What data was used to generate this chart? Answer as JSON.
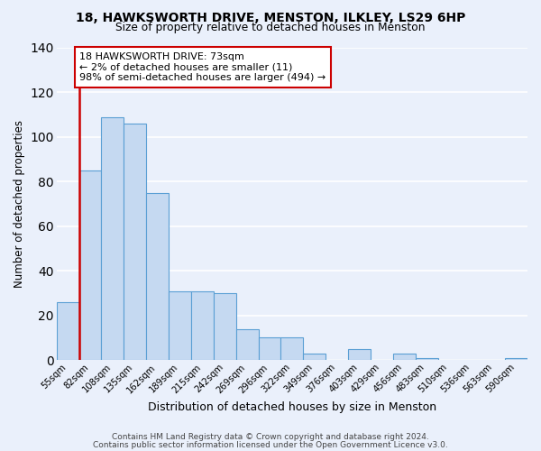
{
  "title1": "18, HAWKSWORTH DRIVE, MENSTON, ILKLEY, LS29 6HP",
  "title2": "Size of property relative to detached houses in Menston",
  "xlabel": "Distribution of detached houses by size in Menston",
  "ylabel": "Number of detached properties",
  "bar_labels": [
    "55sqm",
    "82sqm",
    "108sqm",
    "135sqm",
    "162sqm",
    "189sqm",
    "215sqm",
    "242sqm",
    "269sqm",
    "296sqm",
    "322sqm",
    "349sqm",
    "376sqm",
    "403sqm",
    "429sqm",
    "456sqm",
    "483sqm",
    "510sqm",
    "536sqm",
    "563sqm",
    "590sqm"
  ],
  "bar_values": [
    26,
    85,
    109,
    106,
    75,
    31,
    31,
    30,
    14,
    10,
    10,
    3,
    0,
    5,
    0,
    3,
    1,
    0,
    0,
    0,
    1
  ],
  "bar_color": "#c5d9f1",
  "bar_edge_color": "#5a9fd4",
  "background_color": "#eaf0fb",
  "grid_color": "#ffffff",
  "ylim": [
    0,
    140
  ],
  "yticks": [
    0,
    20,
    40,
    60,
    80,
    100,
    120,
    140
  ],
  "annotation_title": "18 HAWKSWORTH DRIVE: 73sqm",
  "annotation_line1": "← 2% of detached houses are smaller (11)",
  "annotation_line2": "98% of semi-detached houses are larger (494) →",
  "annotation_box_color": "#ffffff",
  "annotation_border_color": "#cc0000",
  "footer1": "Contains HM Land Registry data © Crown copyright and database right 2024.",
  "footer2": "Contains public sector information licensed under the Open Government Licence v3.0."
}
